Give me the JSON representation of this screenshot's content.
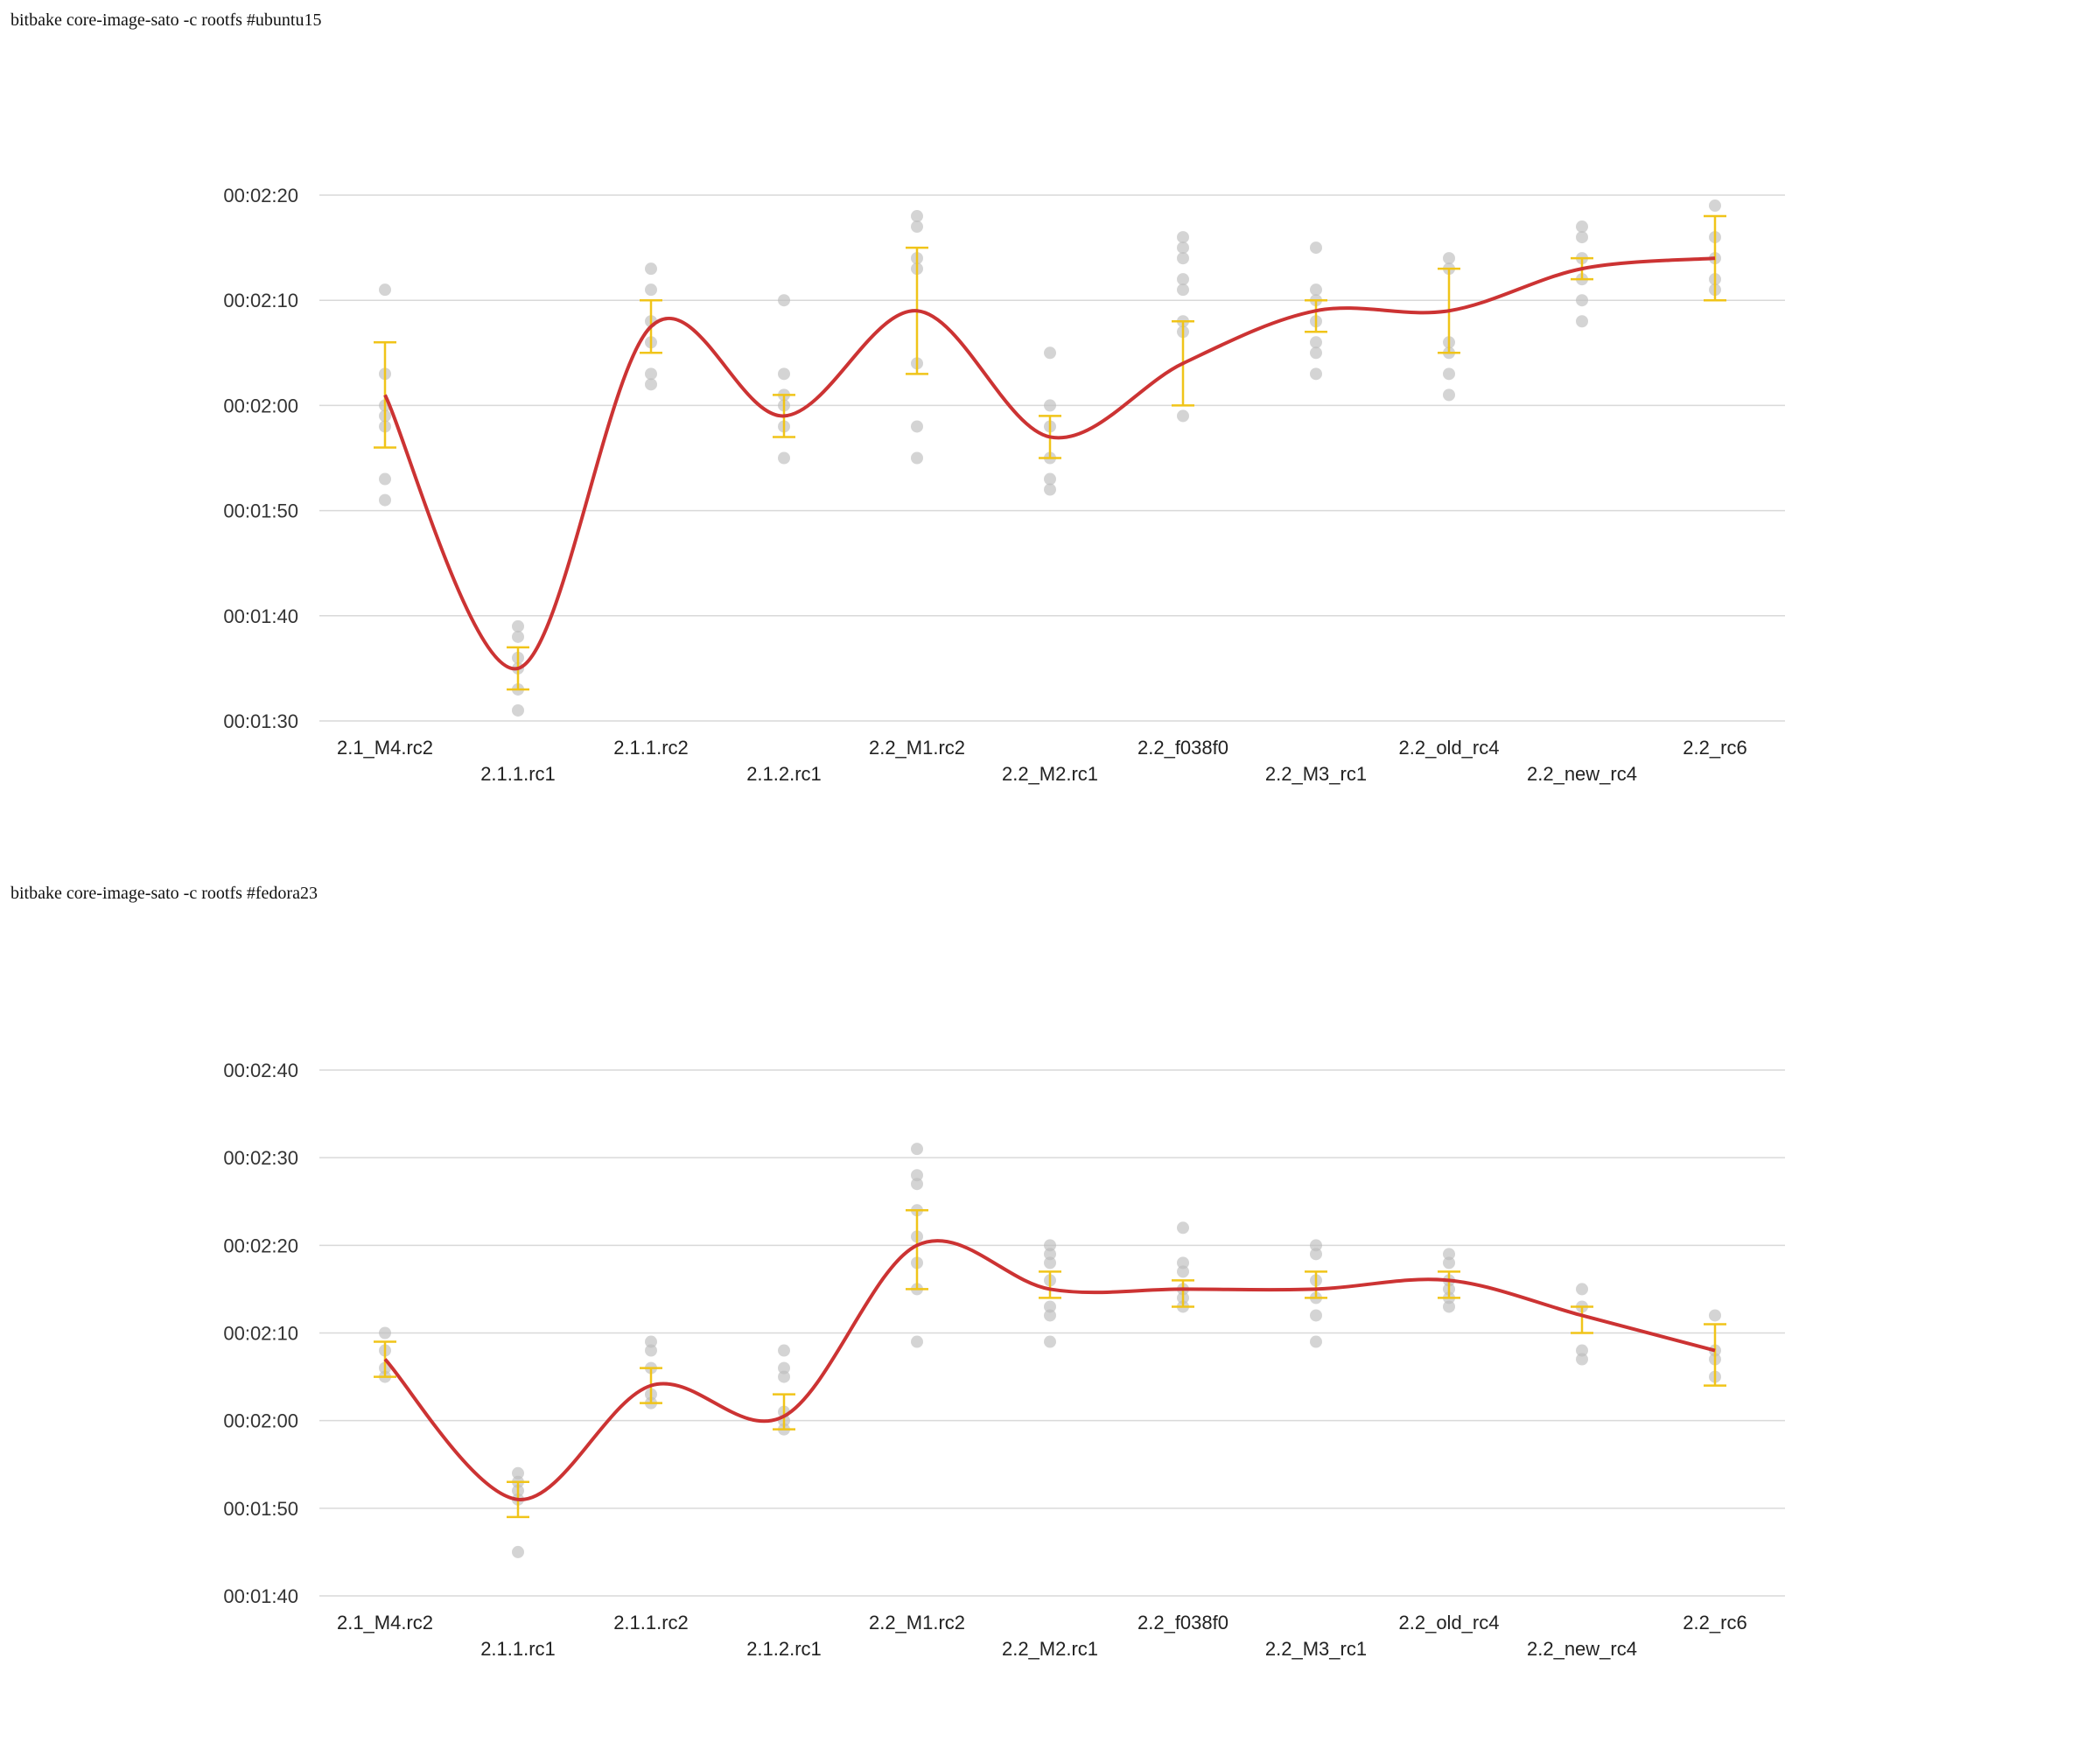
{
  "colors": {
    "line": "#cc3333",
    "error_bar": "#f0c419",
    "point": "#bdbdbd",
    "grid": "#d9d9d9"
  },
  "chart_data": [
    {
      "type": "scatter",
      "title": "bitbake core-image-sato -c rootfs #ubuntu15",
      "categories": [
        "2.1_M4.rc2",
        "2.1.1.rc1",
        "2.1.1.rc2",
        "2.1.2.rc1",
        "2.2_M1.rc2",
        "2.2_M2.rc1",
        "2.2_f038f0",
        "2.2_M3_rc1",
        "2.2_old_rc4",
        "2.2_new_rc4",
        "2.2_rc6"
      ],
      "yticks": [
        "00:01:30",
        "00:01:40",
        "00:01:50",
        "00:02:00",
        "00:02:10",
        "00:02:20"
      ],
      "ylim": [
        90,
        140
      ],
      "grid": true,
      "series": [
        {
          "kind": "mean",
          "values": [
            121,
            95,
            127.5,
            119,
            129,
            117,
            124,
            129,
            129,
            133,
            134
          ]
        },
        {
          "kind": "error",
          "low": [
            116,
            93,
            125,
            117,
            123,
            115,
            120,
            127,
            125,
            132,
            130
          ],
          "high": [
            126,
            97,
            130,
            121,
            135,
            119,
            128,
            130,
            133,
            134,
            138
          ]
        },
        {
          "kind": "points",
          "values": [
            [
              131,
              123,
              120,
              119,
              118,
              113,
              111
            ],
            [
              99,
              98,
              96,
              95,
              93,
              91
            ],
            [
              133,
              131,
              128,
              126,
              123,
              122
            ],
            [
              130,
              123,
              121,
              120,
              118,
              115
            ],
            [
              138,
              137,
              134,
              133,
              124,
              118,
              115
            ],
            [
              125,
              120,
              118,
              115,
              113,
              112
            ],
            [
              136,
              135,
              134,
              132,
              131,
              128,
              127,
              119
            ],
            [
              135,
              131,
              130,
              128,
              126,
              125,
              123
            ],
            [
              134,
              133,
              126,
              125,
              123,
              121
            ],
            [
              137,
              136,
              134,
              132,
              130,
              128
            ],
            [
              139,
              136,
              134,
              132,
              131
            ]
          ]
        }
      ]
    },
    {
      "type": "scatter",
      "title": "bitbake core-image-sato -c rootfs #fedora23",
      "categories": [
        "2.1_M4.rc2",
        "2.1.1.rc1",
        "2.1.1.rc2",
        "2.1.2.rc1",
        "2.2_M1.rc2",
        "2.2_M2.rc1",
        "2.2_f038f0",
        "2.2_M3_rc1",
        "2.2_old_rc4",
        "2.2_new_rc4",
        "2.2_rc6"
      ],
      "yticks": [
        "00:01:40",
        "00:01:50",
        "00:02:00",
        "00:02:10",
        "00:02:20",
        "00:02:30",
        "00:02:40"
      ],
      "ylim": [
        100,
        160
      ],
      "grid": true,
      "series": [
        {
          "kind": "mean",
          "values": [
            127,
            111,
            124,
            120.5,
            140,
            135,
            135,
            135,
            136,
            132,
            128
          ]
        },
        {
          "kind": "error",
          "low": [
            125,
            109,
            122,
            119,
            135,
            134,
            133,
            134,
            134,
            130,
            124
          ],
          "high": [
            129,
            113,
            126,
            123,
            144,
            137,
            136,
            137,
            137,
            133,
            131
          ]
        },
        {
          "kind": "points",
          "values": [
            [
              130,
              128,
              126,
              125
            ],
            [
              114,
              113,
              112,
              111,
              105
            ],
            [
              129,
              128,
              126,
              123,
              122
            ],
            [
              128,
              126,
              125,
              121,
              120,
              119
            ],
            [
              151,
              148,
              147,
              144,
              141,
              138,
              135,
              129
            ],
            [
              140,
              139,
              138,
              136,
              133,
              132,
              129
            ],
            [
              142,
              138,
              137,
              135,
              134,
              133
            ],
            [
              140,
              139,
              136,
              134,
              132,
              129
            ],
            [
              139,
              138,
              136,
              135,
              134,
              133
            ],
            [
              135,
              133,
              128,
              127
            ],
            [
              132,
              128,
              127,
              125
            ]
          ]
        }
      ]
    }
  ]
}
